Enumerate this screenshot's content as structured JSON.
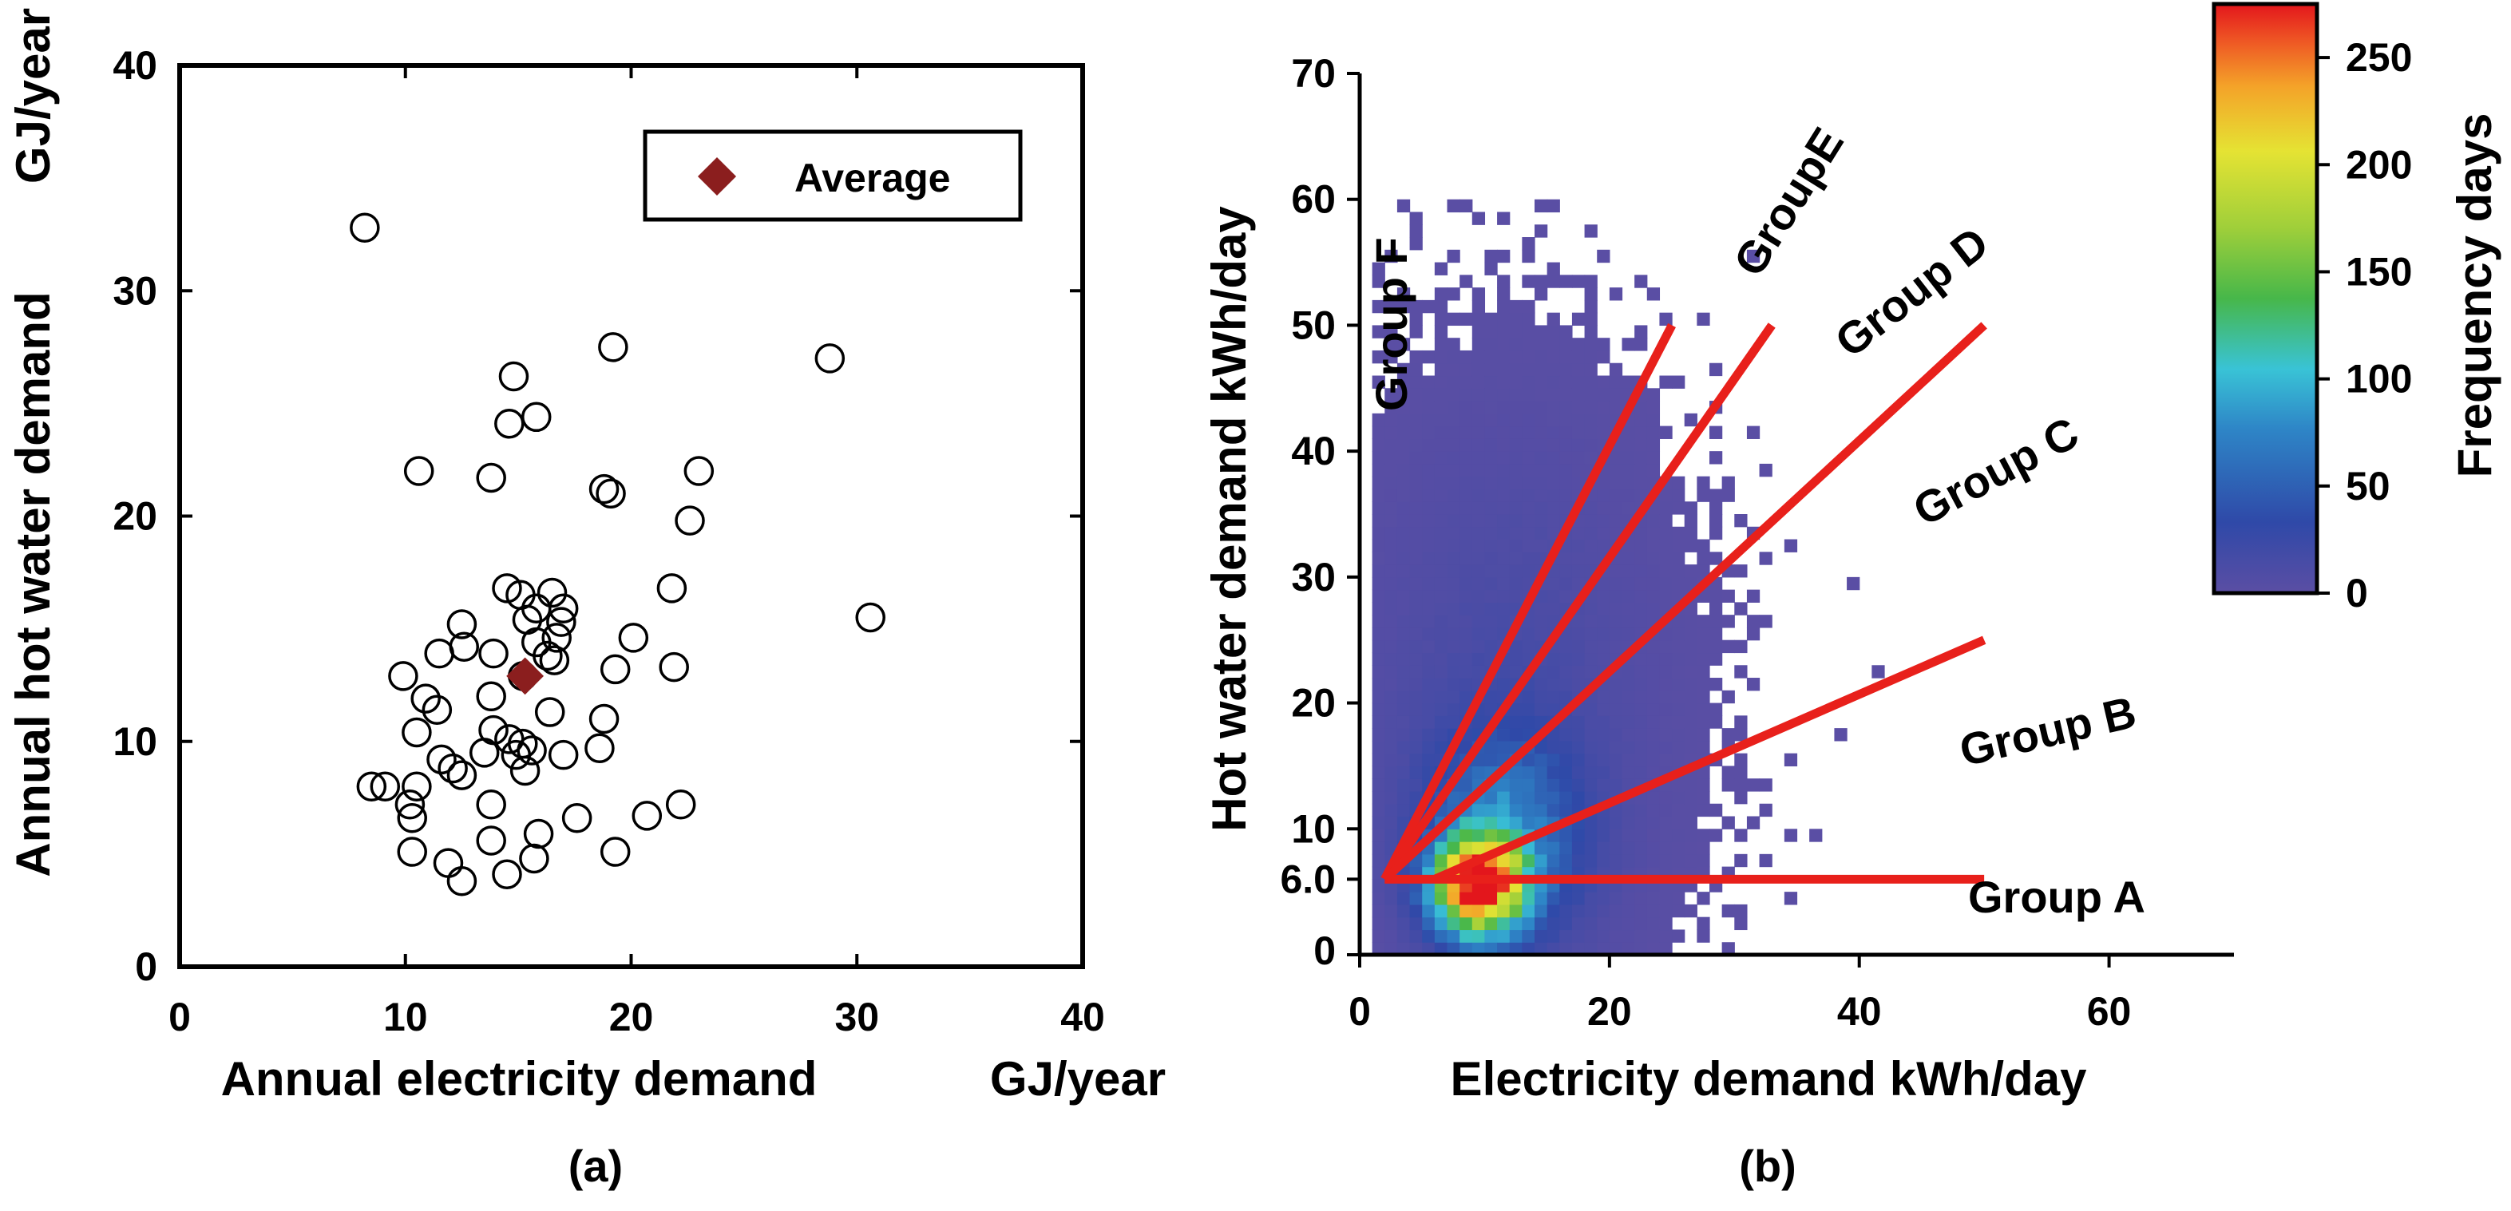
{
  "chart_data": [
    {
      "type": "scatter",
      "panel_label": "(a)",
      "xlabel": "Annual electricity demand",
      "xlabel_unit": "GJ/year",
      "ylabel": "Annual hot water demand",
      "ylabel_unit": "GJ/year",
      "xlim": [
        0,
        40
      ],
      "ylim": [
        0,
        40
      ],
      "xticks": [
        "0",
        "10",
        "20",
        "30",
        "40"
      ],
      "yticks": [
        "0",
        "10",
        "20",
        "30",
        "40"
      ],
      "legend": {
        "label": "Average",
        "placement": "top-right"
      },
      "average_point": {
        "x": 15.3,
        "y": 12.9
      },
      "points": [
        [
          8.2,
          32.8
        ],
        [
          14.8,
          26.2
        ],
        [
          15.8,
          24.4
        ],
        [
          14.6,
          24.1
        ],
        [
          19.2,
          27.5
        ],
        [
          28.8,
          27.0
        ],
        [
          10.6,
          22.0
        ],
        [
          13.8,
          21.7
        ],
        [
          18.8,
          21.2
        ],
        [
          19.1,
          21.0
        ],
        [
          23.0,
          22.0
        ],
        [
          22.6,
          19.8
        ],
        [
          30.6,
          15.5
        ],
        [
          21.8,
          16.8
        ],
        [
          20.1,
          14.6
        ],
        [
          21.9,
          13.3
        ],
        [
          19.3,
          13.2
        ],
        [
          14.5,
          16.8
        ],
        [
          15.1,
          16.5
        ],
        [
          16.5,
          16.6
        ],
        [
          15.8,
          15.9
        ],
        [
          17.0,
          15.9
        ],
        [
          16.9,
          15.3
        ],
        [
          15.4,
          15.4
        ],
        [
          16.7,
          14.6
        ],
        [
          15.8,
          14.4
        ],
        [
          12.5,
          15.2
        ],
        [
          11.5,
          13.9
        ],
        [
          12.6,
          14.2
        ],
        [
          13.9,
          13.9
        ],
        [
          16.3,
          13.8
        ],
        [
          16.6,
          13.6
        ],
        [
          15.2,
          12.9
        ],
        [
          9.9,
          12.9
        ],
        [
          13.8,
          12.0
        ],
        [
          10.9,
          11.9
        ],
        [
          16.4,
          11.3
        ],
        [
          11.4,
          11.4
        ],
        [
          18.8,
          11.0
        ],
        [
          10.5,
          10.4
        ],
        [
          13.9,
          10.5
        ],
        [
          14.6,
          10.1
        ],
        [
          15.2,
          9.9
        ],
        [
          15.6,
          9.6
        ],
        [
          14.9,
          9.4
        ],
        [
          17.0,
          9.4
        ],
        [
          18.6,
          9.7
        ],
        [
          13.5,
          9.5
        ],
        [
          11.6,
          9.2
        ],
        [
          12.1,
          8.8
        ],
        [
          15.3,
          8.7
        ],
        [
          12.5,
          8.5
        ],
        [
          8.5,
          8.0
        ],
        [
          9.1,
          8.0
        ],
        [
          10.5,
          8.0
        ],
        [
          13.8,
          7.2
        ],
        [
          10.2,
          7.2
        ],
        [
          10.3,
          6.6
        ],
        [
          17.6,
          6.6
        ],
        [
          20.7,
          6.7
        ],
        [
          22.2,
          7.2
        ],
        [
          13.8,
          5.6
        ],
        [
          15.9,
          5.9
        ],
        [
          10.3,
          5.1
        ],
        [
          11.9,
          4.6
        ],
        [
          15.7,
          4.8
        ],
        [
          19.3,
          5.1
        ],
        [
          12.5,
          3.8
        ],
        [
          14.5,
          4.1
        ]
      ]
    },
    {
      "type": "heatmap",
      "panel_label": "(b)",
      "xlabel": "Electricity demand kWh/day",
      "ylabel": "Hot water demand kWh/day",
      "xlim": [
        0,
        70
      ],
      "ylim": [
        0,
        70
      ],
      "xticks": [
        "0",
        "20",
        "40",
        "60"
      ],
      "yticks": [
        "0",
        "6.0",
        "10",
        "20",
        "30",
        "40",
        "50",
        "60",
        "70"
      ],
      "colorbar": {
        "label": "Frequency days",
        "range": [
          0,
          275
        ],
        "ticks": [
          "0",
          "50",
          "100",
          "150",
          "200",
          "250"
        ]
      },
      "bin_size": 1,
      "group_lines": [
        {
          "from": [
            2,
            6
          ],
          "to": [
            50,
            6
          ]
        },
        {
          "from": [
            2,
            6
          ],
          "to": [
            25,
            50
          ]
        },
        {
          "from": [
            2,
            6
          ],
          "to": [
            33,
            50
          ]
        },
        {
          "from": [
            2,
            6
          ],
          "to": [
            50,
            50
          ]
        },
        {
          "from": [
            6,
            6
          ],
          "to": [
            50,
            25
          ]
        }
      ],
      "group_labels": [
        "Group A",
        "Group B",
        "Group C",
        "Group D",
        "GroupE",
        "Group F"
      ],
      "density_clusters": [
        {
          "cx": 9.5,
          "cy": 5.5,
          "sx": 2.4,
          "sy": 2.6,
          "peak": 260
        },
        {
          "cx": 11.5,
          "cy": 9.5,
          "sx": 4.2,
          "sy": 5.5,
          "peak": 70
        },
        {
          "cx": 12.0,
          "cy": 20.0,
          "sx": 7.5,
          "sy": 14.0,
          "peak": 14
        }
      ],
      "scatter_bin_extent": {
        "x": [
          1,
          42
        ],
        "y": [
          0,
          60
        ]
      }
    }
  ]
}
